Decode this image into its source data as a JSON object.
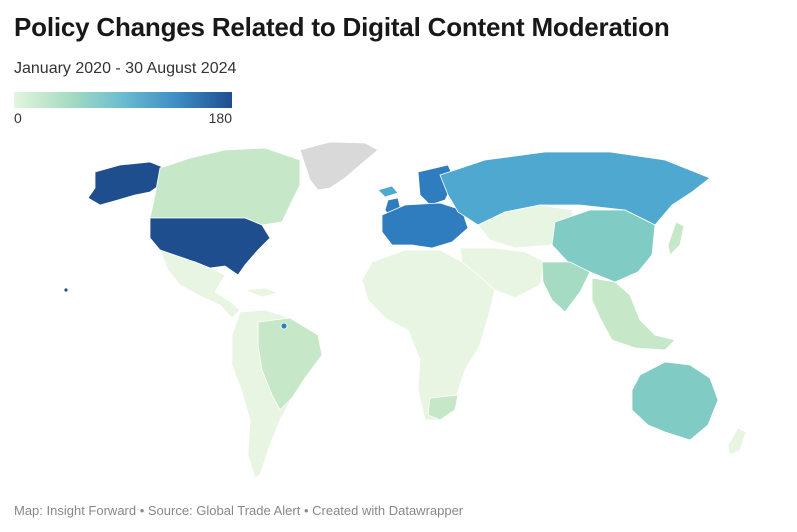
{
  "title": "Policy Changes Related to Digital Content Moderation",
  "subtitle": "January 2020 - 30 August 2024",
  "legend": {
    "min_label": "0",
    "max_label": "180",
    "min": 0,
    "max": 180,
    "colors": [
      "#e3f5de",
      "#a8dcc2",
      "#6bbcd0",
      "#3d8cc4",
      "#1f4e8f"
    ]
  },
  "footer": "Map: Insight Forward • Source: Global Trade Alert • Created with Datawrapper",
  "map_colors": {
    "no_data": "#d9d9d9",
    "very_low": "#e8f5e2",
    "low": "#c7e8c8",
    "mid_low": "#a5dbc3",
    "mid": "#80cbc4",
    "mid_high": "#4fa8cf",
    "high": "#2f7dbf",
    "very_high": "#1f4e8f"
  }
}
